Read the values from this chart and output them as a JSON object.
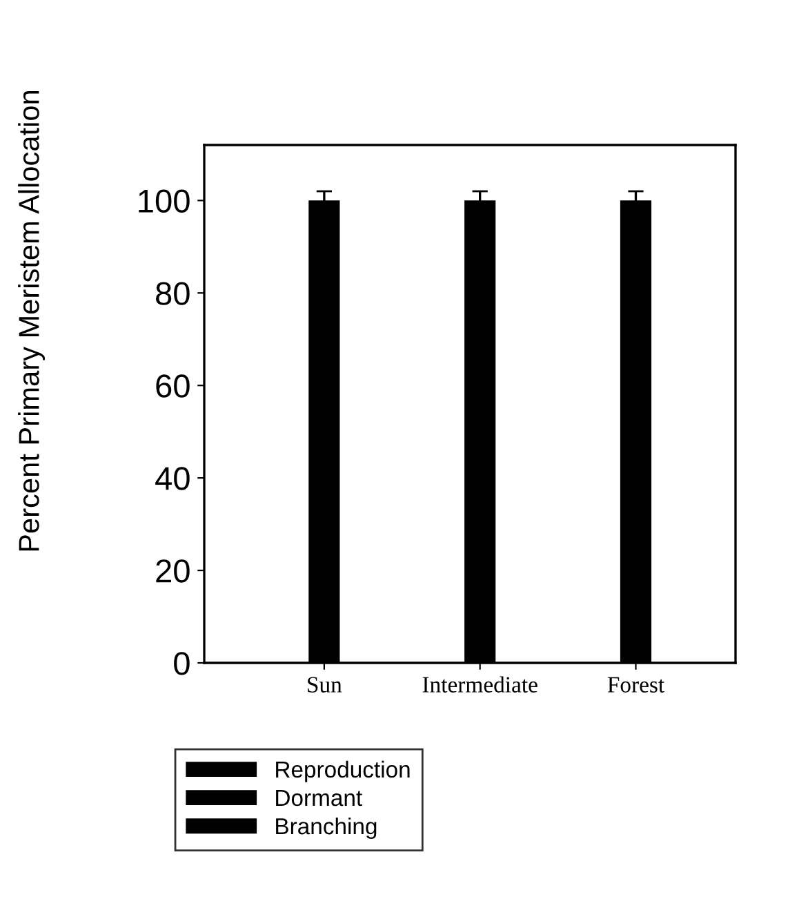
{
  "chart_data": {
    "type": "bar",
    "ylabel": "Percent Primary Meristem Allocation",
    "categories": [
      "Sun",
      "Intermediate",
      "Forest"
    ],
    "series": [
      {
        "name": "Reproduction",
        "color": "#000000",
        "values": [
          0,
          0,
          0
        ]
      },
      {
        "name": "Dormant",
        "color": "#000000",
        "values": [
          0,
          0,
          0
        ]
      },
      {
        "name": "Branching",
        "color": "#000000",
        "values": [
          100,
          100,
          100
        ],
        "errors": [
          2,
          2,
          2
        ]
      }
    ],
    "ylim": [
      0,
      112
    ],
    "yticks": [
      0,
      20,
      40,
      60,
      80,
      100
    ],
    "grid": false,
    "legend": "bottom left"
  }
}
